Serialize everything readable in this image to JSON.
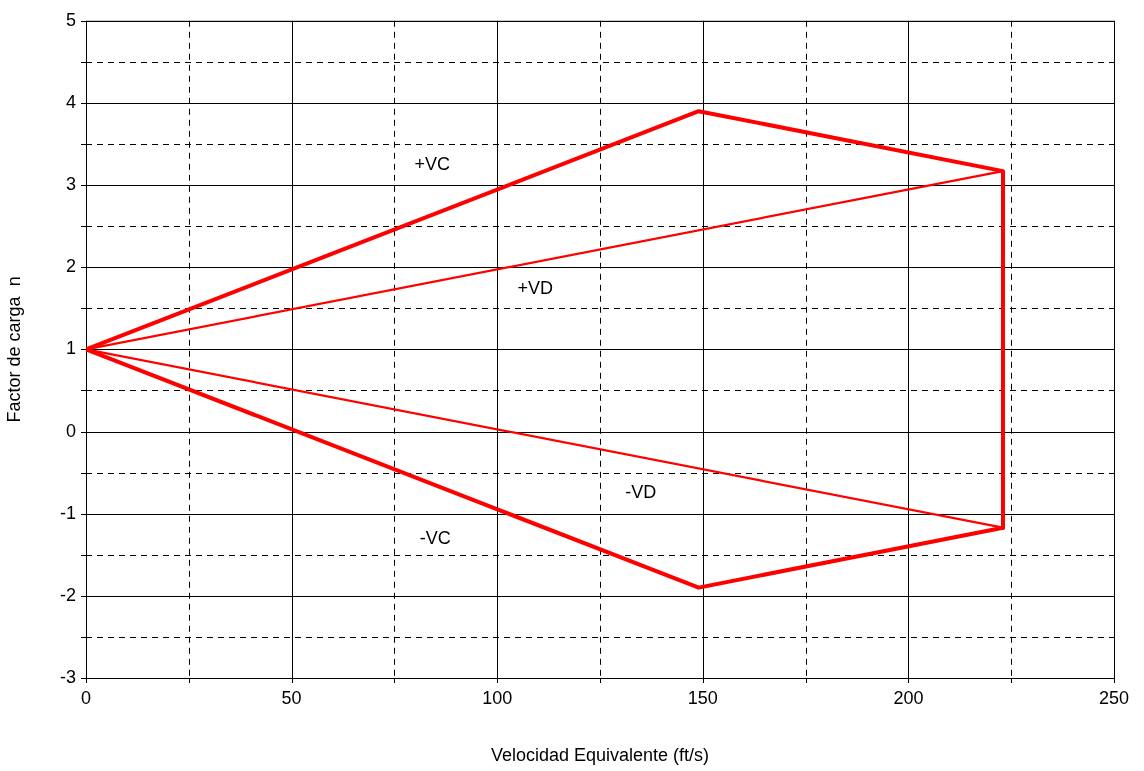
{
  "chart_data": {
    "type": "line",
    "xlabel": "Velocidad Equivalente (ft/s)",
    "ylabel": "Factor de carga  n",
    "series": [
      {
        "name": "+VC",
        "color": "#ff0000",
        "x": [
          0,
          149,
          223,
          223
        ],
        "values": [
          1,
          3.9,
          3.17,
          -1.17
        ]
      },
      {
        "name": "-VC",
        "color": "#ff0000",
        "x": [
          0,
          149,
          223
        ],
        "values": [
          1,
          -1.9,
          -1.17
        ]
      },
      {
        "name": "+VD",
        "color": "#ff0000",
        "x": [
          0,
          223
        ],
        "values": [
          1,
          3.17
        ]
      },
      {
        "name": "-VD",
        "color": "#ff0000",
        "x": [
          0,
          223
        ],
        "values": [
          1,
          -1.17
        ]
      }
    ],
    "xlim": [
      0,
      250
    ],
    "xticks": [
      0,
      {
        "value": 25,
        "label": null
      },
      50,
      {
        "value": 75,
        "label": null
      },
      100,
      {
        "value": 125,
        "label": null
      },
      150,
      {
        "value": 175,
        "label": null
      },
      200,
      {
        "value": 225,
        "label": null
      },
      250
    ],
    "ylim": [
      -3,
      5
    ],
    "yticks": [
      -3,
      {
        "value": -2.5,
        "label": null
      },
      -2,
      {
        "value": -1.5,
        "label": null
      },
      -1,
      {
        "value": -0.5,
        "label": null
      },
      0,
      {
        "value": 0.5,
        "label": null
      },
      1,
      {
        "value": 1.5,
        "label": null
      },
      2,
      {
        "value": 2.5,
        "label": null
      },
      3,
      {
        "value": 3.5,
        "label": null
      },
      4,
      {
        "value": 4.5,
        "label": null
      },
      5
    ],
    "grid": true,
    "legend": false,
    "marker": "none"
  }
}
